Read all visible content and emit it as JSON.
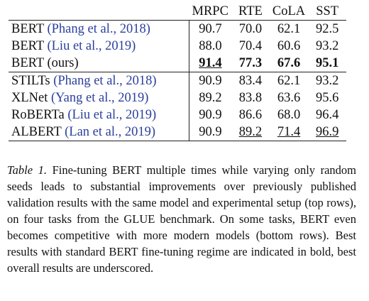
{
  "table": {
    "header": [
      "MRPC",
      "RTE",
      "CoLA",
      "SST"
    ],
    "groups": [
      [
        {
          "model": "BERT",
          "citation": "(Phang et al., 2018)",
          "scores": [
            "90.7",
            "70.0",
            "62.1",
            "92.5"
          ]
        },
        {
          "model": "BERT",
          "citation": "(Liu et al., 2019)",
          "scores": [
            "88.0",
            "70.4",
            "60.6",
            "93.2"
          ]
        },
        {
          "model": "BERT (ours)",
          "scores": [
            "91.4",
            "77.3",
            "67.6",
            "95.1"
          ],
          "bold": [
            0,
            1,
            2,
            3
          ],
          "underline": [
            0
          ]
        }
      ],
      [
        {
          "model": "STILTs",
          "citation": "(Phang et al., 2018)",
          "scores": [
            "90.9",
            "83.4",
            "62.1",
            "93.2"
          ]
        },
        {
          "model": "XLNet",
          "citation": "(Yang et al., 2019)",
          "scores": [
            "89.2",
            "83.8",
            "63.6",
            "95.6"
          ]
        },
        {
          "model": "RoBERTa",
          "citation": "(Liu et al., 2019)",
          "scores": [
            "90.9",
            "86.6",
            "68.0",
            "96.4"
          ]
        },
        {
          "model": "ALBERT",
          "citation": "(Lan et al., 2019)",
          "scores": [
            "90.9",
            "89.2",
            "71.4",
            "96.9"
          ],
          "underline": [
            1,
            2,
            3
          ]
        }
      ]
    ],
    "citation_color": "#2a3f9e"
  },
  "caption": {
    "label": "Table 1.",
    "text": "Fine-tuning BERT multiple times while varying only random seeds leads to substantial improvements over previously published validation results with the same model and experimental setup (top rows), on four tasks from the GLUE benchmark. On some tasks, BERT even becomes competitive with more modern models (bottom rows). Best results with standard BERT fine-tuning regime are indicated in bold, best overall results are underscored."
  }
}
